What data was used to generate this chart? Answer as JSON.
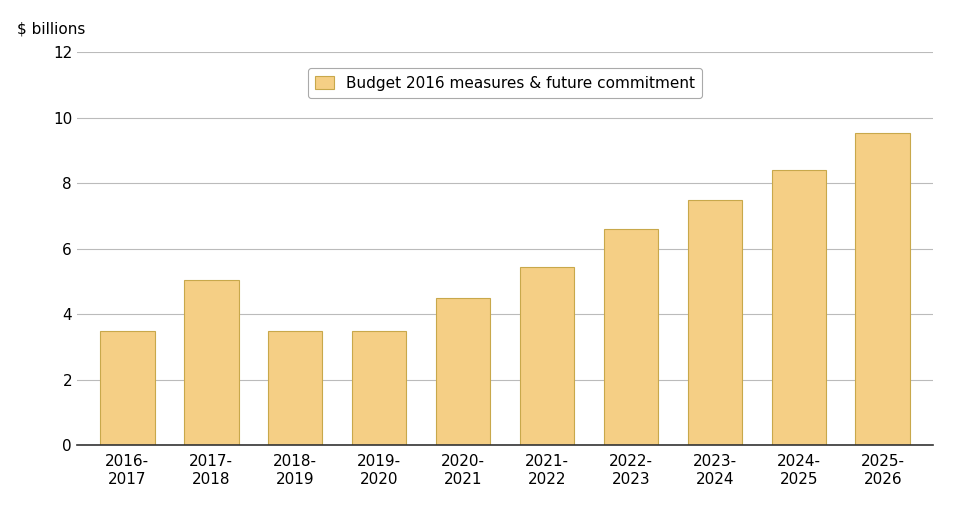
{
  "categories": [
    "2016-\n2017",
    "2017-\n2018",
    "2018-\n2019",
    "2019-\n2020",
    "2020-\n2021",
    "2021-\n2022",
    "2022-\n2023",
    "2023-\n2024",
    "2024-\n2025",
    "2025-\n2026"
  ],
  "values": [
    3.5,
    5.05,
    3.5,
    3.48,
    4.5,
    5.45,
    6.62,
    7.5,
    8.42,
    9.55
  ],
  "bar_color": "#F5CF85",
  "bar_edgecolor": "#C8A84B",
  "top_label": "$ billions",
  "ylim": [
    0,
    12
  ],
  "yticks": [
    0,
    2,
    4,
    6,
    8,
    10,
    12
  ],
  "legend_label": "Budget 2016 measures & future commitment",
  "background_color": "#ffffff",
  "grid_color": "#bbbbbb",
  "axis_fontsize": 11,
  "tick_fontsize": 11
}
